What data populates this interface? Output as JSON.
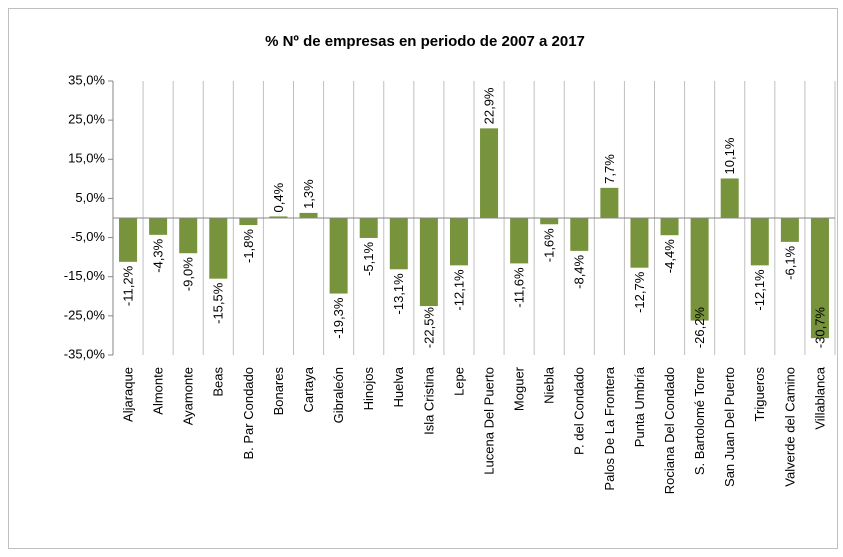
{
  "chart_data": {
    "type": "bar",
    "title": "% Nº de empresas en periodo de 2007 a  2017",
    "categories": [
      "Aljaraque",
      "Almonte",
      "Ayamonte",
      "Beas",
      "B. Par Condado",
      "Bonares",
      "Cartaya",
      "Gibraleón",
      "Hinojos",
      "Huelva",
      "Isla Cristina",
      "Lepe",
      "Lucena Del Puerto",
      "Moguer",
      "Niebla",
      "P. del Condado",
      "Palos De La Frontera",
      "Punta Umbría",
      "Rociana Del Condado",
      "S. Bartolomé Torre",
      "San Juan Del Puerto",
      "Trigueros",
      "Valverde del Camino",
      "Villablanca"
    ],
    "values": [
      -11.2,
      -4.3,
      -9.0,
      -15.5,
      -1.8,
      0.4,
      1.3,
      -19.3,
      -5.1,
      -13.1,
      -22.5,
      -12.1,
      22.9,
      -11.6,
      -1.6,
      -8.4,
      7.7,
      -12.7,
      -4.4,
      -26.2,
      10.1,
      -12.1,
      -6.1,
      -30.7
    ],
    "value_labels": [
      "-11,2%",
      "-4,3%",
      "-9,0%",
      "-15,5%",
      "-1,8%",
      "0,4%",
      "1,3%",
      "-19,3%",
      "-5,1%",
      "-13,1%",
      "-22,5%",
      "-12,1%",
      "22,9%",
      "-11,6%",
      "-1,6%",
      "-8,4%",
      "7,7%",
      "-12,7%",
      "-4,4%",
      "-26,2%",
      "10,1%",
      "-12,1%",
      "-6,1%",
      "-30,7%"
    ],
    "color": "#77933c",
    "ylim": [
      -35,
      35
    ],
    "yticks": [
      {
        "value": 35,
        "label": "35,0%"
      },
      {
        "value": 25,
        "label": "25,0%"
      },
      {
        "value": 15,
        "label": "15,0%"
      },
      {
        "value": 5,
        "label": "5,0%"
      },
      {
        "value": -5,
        "label": "-5,0%"
      },
      {
        "value": -15,
        "label": "-15,0%"
      },
      {
        "value": -25,
        "label": "-25,0%"
      },
      {
        "value": -35,
        "label": "-35,0%"
      }
    ],
    "grid": false
  }
}
